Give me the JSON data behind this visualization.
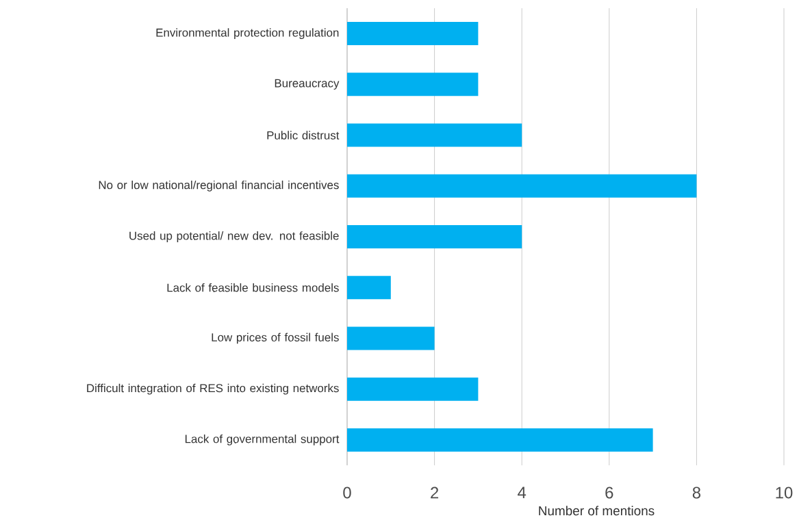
{
  "chart_data": {
    "type": "bar",
    "orientation": "horizontal",
    "categories": [
      "Environmental protection regulation",
      "Bureaucracy",
      "Public distrust",
      "No or low national/regional financial incentives",
      "Used up potential/ new dev. not feasible",
      "Lack of feasible business models",
      "Low prices of fossil fuels",
      "Difficult integration of RES into existing networks",
      "Lack of governmental support"
    ],
    "values": [
      3,
      3,
      4,
      8,
      4,
      1,
      2,
      3,
      7
    ],
    "color": "#00b0f0",
    "xlim": [
      0,
      10
    ],
    "xticks": [
      0,
      2,
      4,
      6,
      8,
      10
    ],
    "xlabel": "Number of mentions",
    "grid": "x"
  }
}
